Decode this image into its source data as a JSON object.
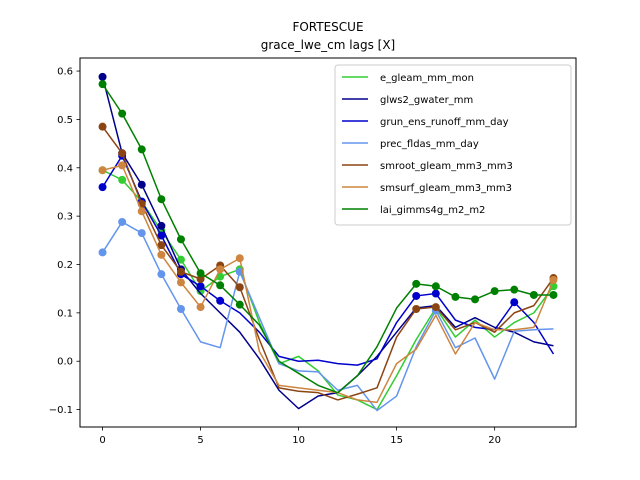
{
  "chart_data": {
    "type": "line",
    "title": "FORTESCUE",
    "subtitle": "grace_lwe_cm lags [X]",
    "xlabel": "",
    "ylabel": "",
    "xlim": [
      -1.15,
      24.15
    ],
    "ylim": [
      -0.136,
      0.627
    ],
    "xticks": [
      0,
      5,
      10,
      15,
      20
    ],
    "yticks": [
      -0.1,
      0.0,
      0.1,
      0.2,
      0.3,
      0.4,
      0.5,
      0.6
    ],
    "ytick_labels": [
      "−0.1",
      "0.0",
      "0.1",
      "0.2",
      "0.3",
      "0.4",
      "0.5",
      "0.6"
    ],
    "x": [
      0,
      1,
      2,
      3,
      4,
      5,
      6,
      7,
      8,
      9,
      10,
      11,
      12,
      13,
      14,
      15,
      16,
      17,
      18,
      19,
      20,
      21,
      22,
      23
    ],
    "legend_position": "top-right",
    "series": [
      {
        "name": "e_gleam_mm_mon",
        "color": "#32cd32",
        "values": [
          0.395,
          0.375,
          0.33,
          0.27,
          0.21,
          0.145,
          0.175,
          0.19,
          0.08,
          -0.005,
          0.01,
          -0.02,
          -0.07,
          -0.08,
          -0.1,
          -0.03,
          0.045,
          0.11,
          0.05,
          0.085,
          0.05,
          0.08,
          0.1,
          0.155
        ],
        "markers": [
          0,
          1,
          2,
          3,
          4,
          5,
          6,
          7,
          23
        ]
      },
      {
        "name": "glws2_gwater_mm",
        "color": "#00008b",
        "values": [
          0.588,
          0.43,
          0.365,
          0.28,
          0.19,
          0.14,
          0.1,
          0.06,
          0.005,
          -0.06,
          -0.098,
          -0.072,
          -0.065,
          -0.03,
          0.01,
          0.06,
          0.11,
          0.115,
          0.07,
          0.09,
          0.07,
          0.06,
          0.04,
          0.032
        ],
        "markers": [
          0,
          1,
          2,
          3,
          4
        ]
      },
      {
        "name": "grun_ens_runoff_mm_day",
        "color": "#0000cd",
        "values": [
          0.36,
          0.425,
          0.33,
          0.26,
          0.18,
          0.155,
          0.125,
          0.1,
          0.06,
          0.01,
          0.0,
          0.002,
          -0.005,
          -0.008,
          0.005,
          0.08,
          0.135,
          0.14,
          0.085,
          0.07,
          0.065,
          0.122,
          0.08,
          0.015
        ],
        "markers": [
          0,
          1,
          2,
          3,
          4,
          5,
          6,
          16,
          17,
          21
        ]
      },
      {
        "name": "prec_fldas_mm_day",
        "color": "#6495ed",
        "values": [
          0.225,
          0.288,
          0.265,
          0.18,
          0.108,
          0.04,
          0.028,
          0.185,
          0.09,
          -0.005,
          -0.02,
          -0.022,
          -0.06,
          -0.05,
          -0.102,
          -0.072,
          0.03,
          0.105,
          0.028,
          0.048,
          -0.037,
          0.062,
          0.065,
          0.067
        ],
        "markers": [
          0,
          1,
          2,
          3,
          4,
          7,
          17
        ]
      },
      {
        "name": "smroot_gleam_mm3_mm3",
        "color": "#8b4513",
        "values": [
          0.485,
          0.43,
          0.325,
          0.24,
          0.185,
          0.17,
          0.198,
          0.153,
          0.045,
          -0.055,
          -0.062,
          -0.065,
          -0.08,
          -0.068,
          -0.055,
          0.05,
          0.108,
          0.112,
          0.065,
          0.08,
          0.06,
          0.1,
          0.115,
          0.172
        ],
        "markers": [
          0,
          1,
          2,
          3,
          4,
          5,
          6,
          7,
          16,
          17,
          23
        ]
      },
      {
        "name": "smsurf_gleam_mm3_mm3",
        "color": "#cd853f",
        "values": [
          0.395,
          0.405,
          0.31,
          0.22,
          0.163,
          0.112,
          0.19,
          0.213,
          0.02,
          -0.05,
          -0.055,
          -0.06,
          -0.065,
          -0.08,
          -0.085,
          -0.005,
          0.025,
          0.095,
          0.015,
          0.08,
          0.065,
          0.065,
          0.07,
          0.168
        ],
        "markers": [
          0,
          1,
          2,
          3,
          4,
          5,
          6,
          7,
          23
        ]
      },
      {
        "name": "lai_gimms4g_m2_m2",
        "color": "#008000",
        "values": [
          0.573,
          0.512,
          0.438,
          0.335,
          0.252,
          0.182,
          0.157,
          0.117,
          0.075,
          0.0,
          -0.025,
          -0.05,
          -0.065,
          -0.03,
          0.03,
          0.11,
          0.16,
          0.155,
          0.133,
          0.128,
          0.145,
          0.148,
          0.137,
          0.137
        ],
        "markers": [
          0,
          1,
          2,
          3,
          4,
          5,
          6,
          7,
          16,
          17,
          18,
          19,
          20,
          21,
          22,
          23
        ]
      }
    ]
  }
}
